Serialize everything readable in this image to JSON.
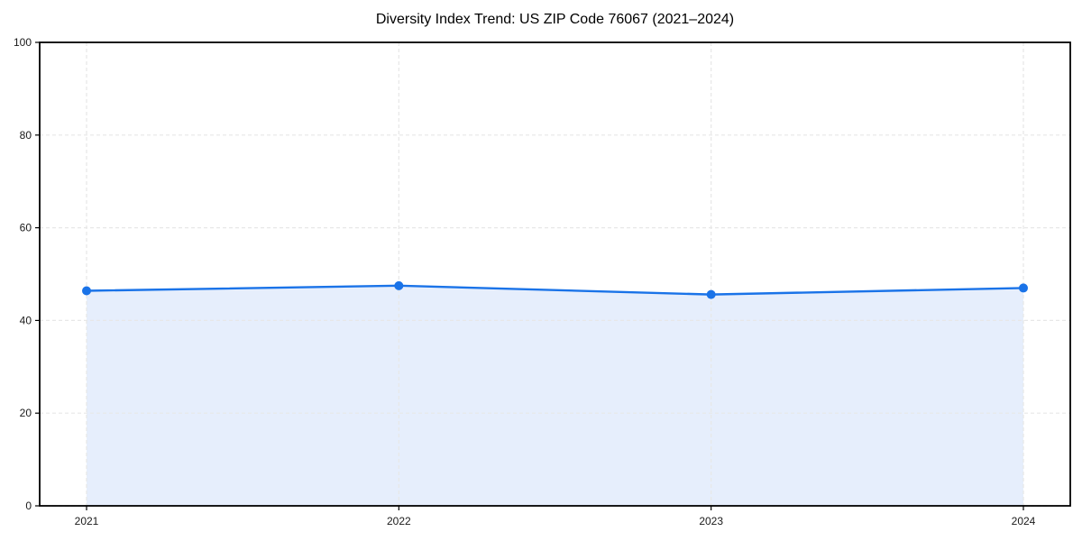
{
  "chart_data": {
    "type": "area",
    "title": "Diversity Index Trend: US ZIP Code 76067 (2021–2024)",
    "categories": [
      "2021",
      "2022",
      "2023",
      "2024"
    ],
    "values": [
      46.4,
      47.5,
      45.6,
      47.0
    ],
    "series_name": "Diversity Index",
    "xlabel": "",
    "ylabel": "",
    "ylim": [
      0,
      100
    ],
    "yticks": [
      0,
      20,
      40,
      60,
      80,
      100
    ],
    "grid": true,
    "grid_style": "dashed",
    "legend": false,
    "marker": "circle",
    "colors": {
      "line": "#1a73e8",
      "marker": "#1a73e8",
      "area_fill": "#e6eefc",
      "gridline": "#e7e7e7",
      "axis": "#000000",
      "tick_label": "#1a1a1a",
      "background": "#ffffff"
    }
  }
}
